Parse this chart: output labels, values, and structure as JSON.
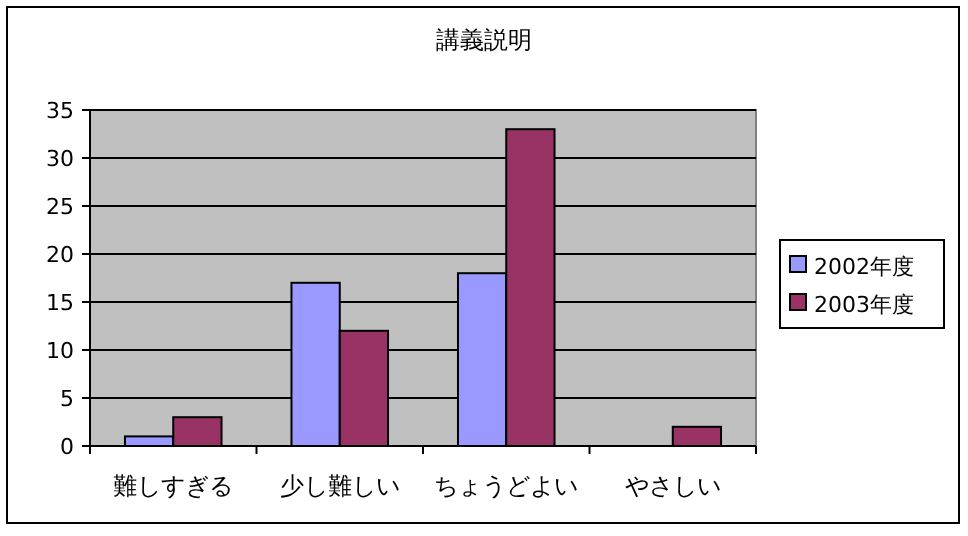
{
  "chart_data": {
    "type": "bar",
    "title": "講義説明",
    "categories": [
      "難しすぎる",
      "少し難しい",
      "ちょうどよい",
      "やさしい"
    ],
    "series": [
      {
        "name": "2002年度",
        "color": "#9999ff",
        "values": [
          1,
          17,
          18,
          0
        ]
      },
      {
        "name": "2003年度",
        "color": "#993366",
        "values": [
          3,
          12,
          33,
          2
        ]
      }
    ],
    "ylim": [
      0,
      35
    ],
    "yticks": [
      0,
      5,
      10,
      15,
      20,
      25,
      30,
      35
    ],
    "grid": "y",
    "legend": "right"
  }
}
